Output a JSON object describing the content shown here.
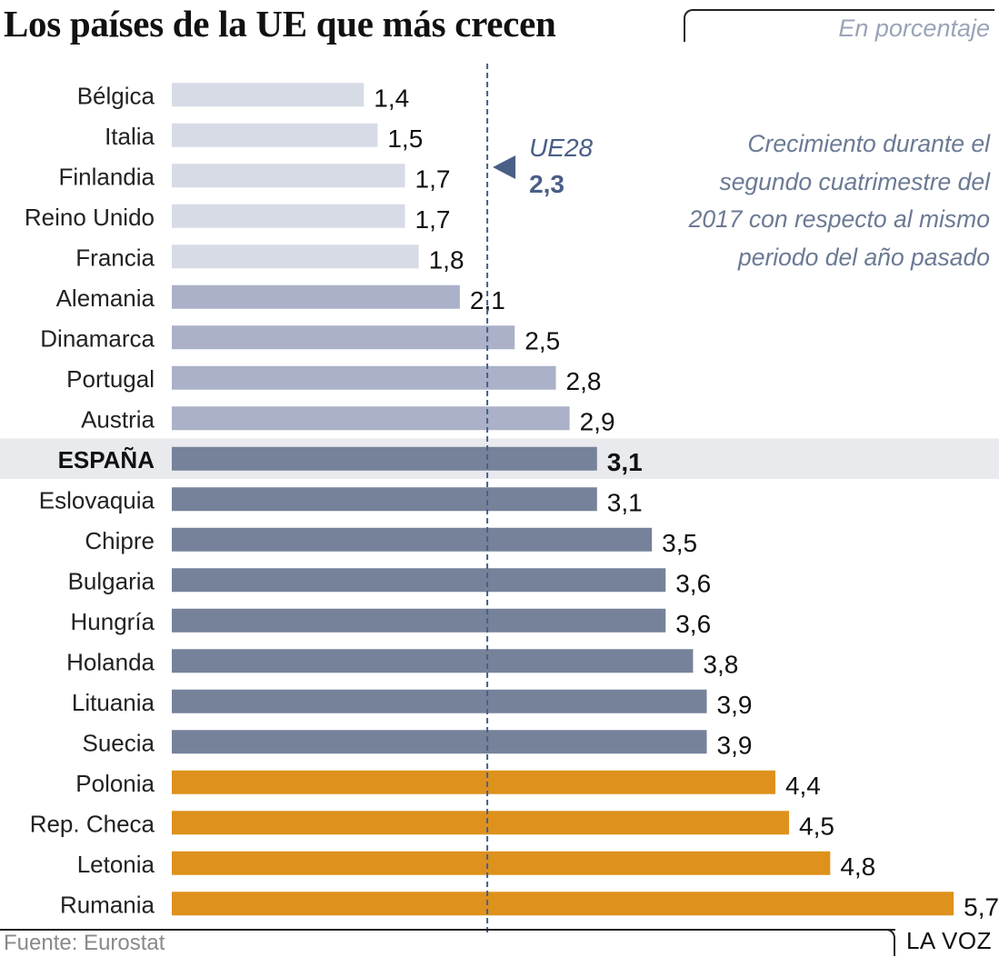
{
  "title": "Los países de la UE que más crecen",
  "subtitle": "En porcentaje",
  "note": "Crecimiento durante el segundo cuatrimestre del 2017 con respecto al mismo periodo del año pasado",
  "source": "Fuente: Eurostat",
  "brand": "LA VOZ",
  "colors": {
    "light": "#d7dbe6",
    "mid": "#aab1c8",
    "dark": "#76829a",
    "orange": "#de911c",
    "highlight_band": "#e8eaee",
    "reference_line": "#4a5f86"
  },
  "chart_data": {
    "type": "bar",
    "orientation": "horizontal",
    "categories": [
      "Bélgica",
      "Italia",
      "Finlandia",
      "Reino Unido",
      "Francia",
      "Alemania",
      "Dinamarca",
      "Portugal",
      "Austria",
      "ESPAÑA",
      "Eslovaquia",
      "Chipre",
      "Bulgaria",
      "Hungría",
      "Holanda",
      "Lituania",
      "Suecia",
      "Polonia",
      "Rep. Checa",
      "Letonia",
      "Rumania"
    ],
    "values": [
      1.4,
      1.5,
      1.7,
      1.7,
      1.8,
      2.1,
      2.5,
      2.8,
      2.9,
      3.1,
      3.1,
      3.5,
      3.6,
      3.6,
      3.8,
      3.9,
      3.9,
      4.4,
      4.5,
      4.8,
      5.7
    ],
    "value_labels": [
      "1,4",
      "1,5",
      "1,7",
      "1,7",
      "1,8",
      "2,1",
      "2,5",
      "2,8",
      "2,9",
      "3,1",
      "3,1",
      "3,5",
      "3,6",
      "3,6",
      "3,8",
      "3,9",
      "3,9",
      "4,4",
      "4,5",
      "4,8",
      "5,7"
    ],
    "color_groups": [
      "light",
      "light",
      "light",
      "light",
      "light",
      "mid",
      "mid",
      "mid",
      "mid",
      "dark",
      "dark",
      "dark",
      "dark",
      "dark",
      "dark",
      "dark",
      "dark",
      "orange",
      "orange",
      "orange",
      "orange"
    ],
    "highlighted": "ESPAÑA",
    "reference": {
      "label": "UE28",
      "value": 2.3,
      "value_label": "2,3"
    },
    "xlim": [
      0,
      5.7
    ]
  }
}
